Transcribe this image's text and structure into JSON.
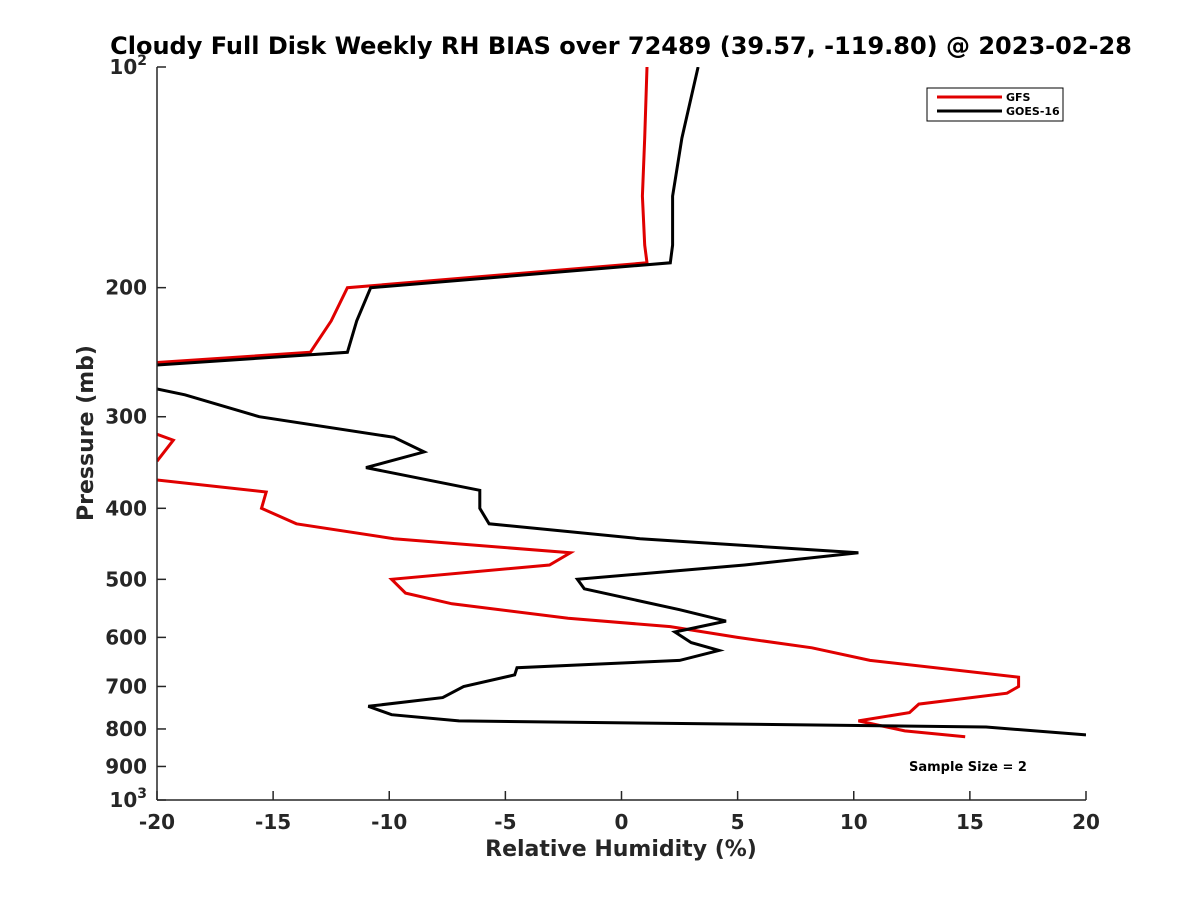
{
  "chart_data": {
    "type": "line",
    "title": "Cloudy Full Disk Weekly RH BIAS over 72489 (39.57, -119.80) @ 2023-02-28",
    "xlabel": "Relative Humidity (%)",
    "ylabel": "Pressure (mb)",
    "xlim": [
      -20,
      20
    ],
    "ylim": [
      100,
      1000
    ],
    "y_scale": "log",
    "y_reversed": true,
    "grid": false,
    "legend_position": "top-right",
    "x_ticks": [
      "-20",
      "-15",
      "-10",
      "-5",
      "0",
      "5",
      "10",
      "15",
      "20"
    ],
    "y_ticks": [
      {
        "value": 100,
        "label": "10",
        "sup": "2"
      },
      {
        "value": 200,
        "label": "200",
        "sup": ""
      },
      {
        "value": 300,
        "label": "300",
        "sup": ""
      },
      {
        "value": 400,
        "label": "400",
        "sup": ""
      },
      {
        "value": 500,
        "label": "500",
        "sup": ""
      },
      {
        "value": 600,
        "label": "600",
        "sup": ""
      },
      {
        "value": 700,
        "label": "700",
        "sup": ""
      },
      {
        "value": 800,
        "label": "800",
        "sup": ""
      },
      {
        "value": 900,
        "label": "900",
        "sup": ""
      },
      {
        "value": 1000,
        "label": "10",
        "sup": "3"
      }
    ],
    "annotation": "Sample Size = 2",
    "series": [
      {
        "name": "GFS",
        "color": "#e00000",
        "points": [
          [
            1.1,
            100
          ],
          [
            1.0,
            125
          ],
          [
            0.9,
            150
          ],
          [
            1.0,
            175
          ],
          [
            1.1,
            185
          ],
          [
            -11.8,
            200
          ],
          [
            -12.5,
            222
          ],
          [
            -13.4,
            245
          ],
          [
            -20.0,
            253
          ],
          null,
          [
            -20.0,
            317
          ],
          [
            -19.3,
            323
          ],
          [
            -20.0,
            345
          ],
          null,
          [
            -20.0,
            366
          ],
          [
            -15.3,
            380
          ],
          [
            -15.5,
            400
          ],
          [
            -14.0,
            420
          ],
          [
            -9.8,
            440
          ],
          [
            -2.2,
            460
          ],
          [
            -3.1,
            478
          ],
          [
            -9.9,
            500
          ],
          [
            -9.3,
            522
          ],
          [
            -7.3,
            540
          ],
          [
            -2.3,
            565
          ],
          [
            2.1,
            580
          ],
          [
            5.0,
            600
          ],
          [
            8.2,
            620
          ],
          [
            10.7,
            645
          ],
          [
            17.1,
            680
          ],
          [
            17.1,
            700
          ],
          [
            16.6,
            715
          ],
          [
            12.8,
            740
          ],
          [
            12.4,
            760
          ],
          [
            10.2,
            780
          ],
          [
            12.2,
            805
          ],
          [
            14.8,
            820
          ]
        ]
      },
      {
        "name": "GOES-16",
        "color": "#000000",
        "points": [
          [
            3.3,
            100
          ],
          [
            2.6,
            125
          ],
          [
            2.2,
            150
          ],
          [
            2.2,
            175
          ],
          [
            2.1,
            185
          ],
          [
            -10.8,
            200
          ],
          [
            -11.4,
            222
          ],
          [
            -11.8,
            245
          ],
          [
            -20.0,
            255
          ],
          null,
          [
            -20.0,
            275
          ],
          [
            -18.8,
            280
          ],
          [
            -15.6,
            300
          ],
          [
            -9.8,
            320
          ],
          [
            -8.5,
            335
          ],
          [
            -11.0,
            352
          ],
          [
            -6.1,
            378
          ],
          [
            -6.1,
            400
          ],
          [
            -5.7,
            420
          ],
          [
            0.8,
            440
          ],
          [
            10.2,
            460
          ],
          [
            5.3,
            478
          ],
          [
            -1.9,
            500
          ],
          [
            -1.6,
            515
          ],
          [
            2.5,
            550
          ],
          [
            4.5,
            570
          ],
          [
            2.3,
            590
          ],
          [
            3.0,
            610
          ],
          [
            4.2,
            625
          ],
          [
            2.5,
            645
          ],
          [
            -4.5,
            660
          ],
          [
            -4.6,
            675
          ],
          [
            -6.8,
            700
          ],
          [
            -7.7,
            725
          ],
          [
            -10.9,
            745
          ],
          [
            -9.9,
            765
          ],
          [
            -7.0,
            780
          ],
          [
            15.7,
            795
          ],
          [
            20.0,
            815
          ]
        ]
      }
    ]
  }
}
